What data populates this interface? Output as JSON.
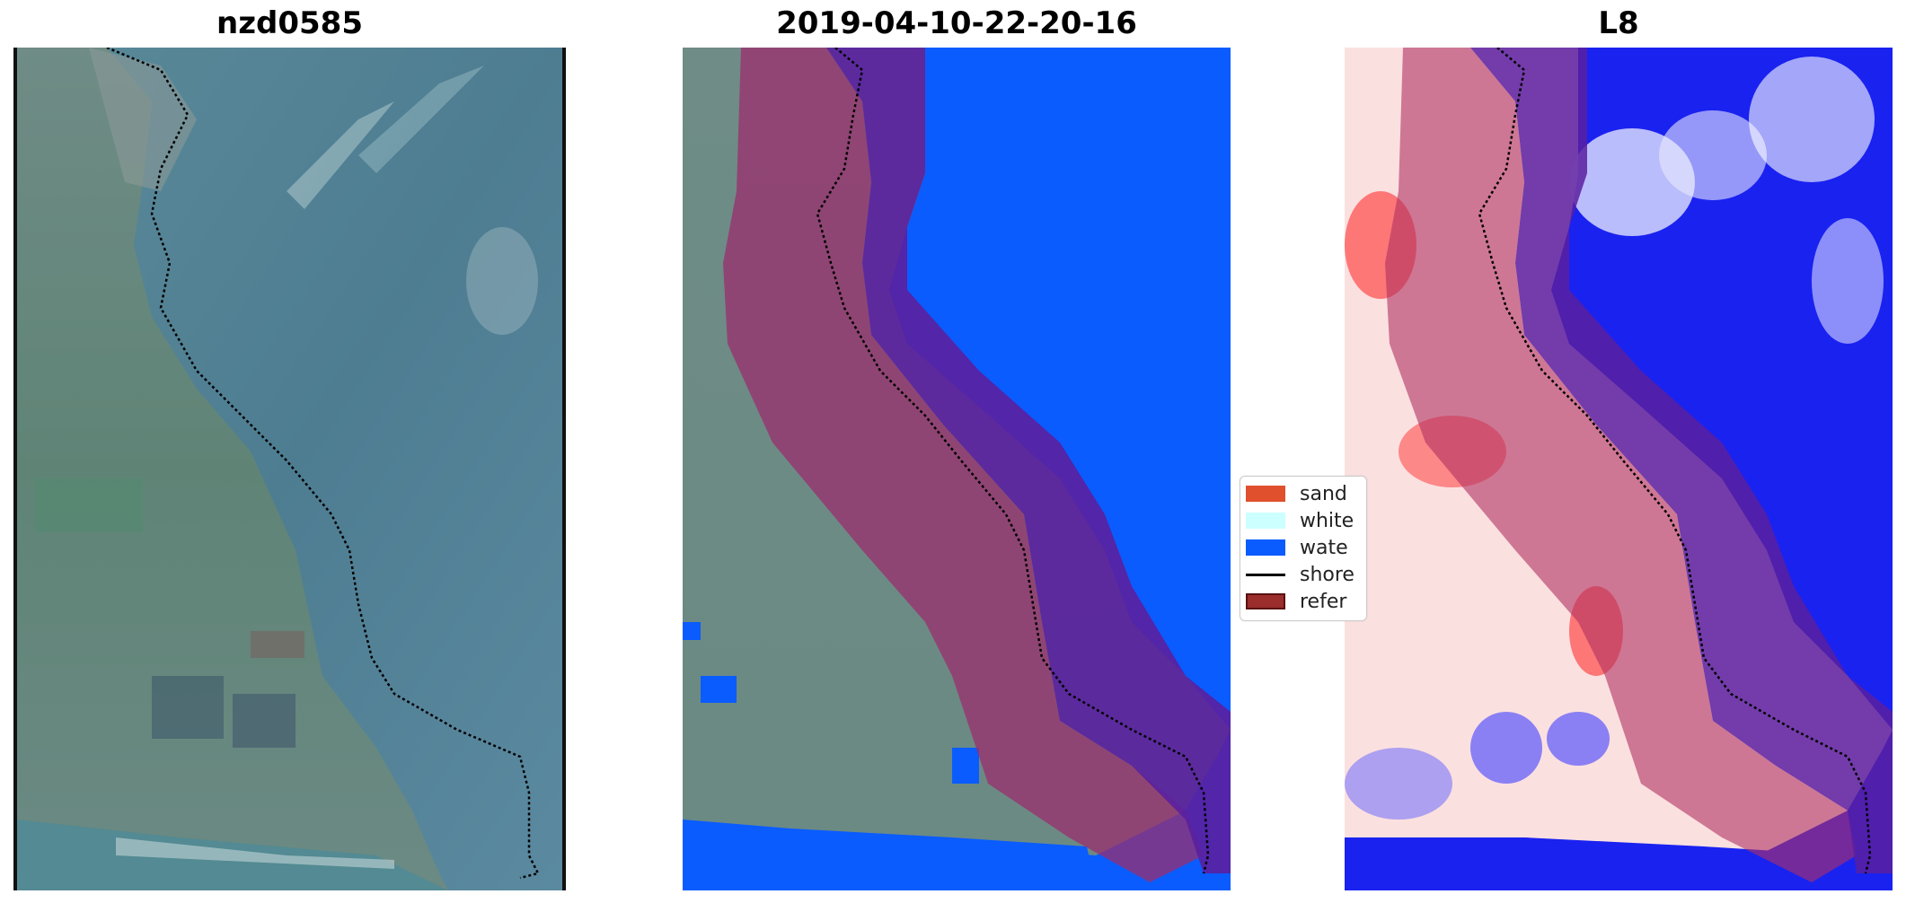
{
  "titles": {
    "left": "nzd0585",
    "middle": "2019-04-10-22-20-16",
    "right": "L8"
  },
  "legend": {
    "items": [
      {
        "label": "sand",
        "color": "#e0502d",
        "kind": "patch"
      },
      {
        "label": "white",
        "color": "#ccffff",
        "kind": "patch"
      },
      {
        "label": "wate",
        "color": "#0a5cff",
        "kind": "patch"
      },
      {
        "label": "shore",
        "color": "#000000",
        "kind": "line"
      },
      {
        "label": "refer",
        "color": "#9b2d2d",
        "kind": "patch-outlined"
      }
    ]
  },
  "colors": {
    "water_class": "#0a5cff",
    "reference_buffer": "#7a1f6e",
    "buffer_overlay": "#5a1fa0",
    "shoreline": "#000000",
    "land_rgb": "#6f8a7a",
    "sea_rgb": "#4f7f96"
  }
}
